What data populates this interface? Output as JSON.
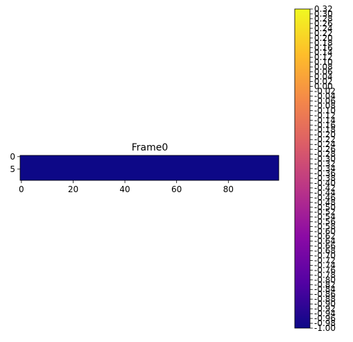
{
  "chart_data": {
    "type": "heatmap",
    "title": "Frame0",
    "colormap": "plasma",
    "grid": false,
    "shape": {
      "rows": 10,
      "cols": 100
    },
    "fill_value": -1.0,
    "x_ticks": [
      "0",
      "20",
      "40",
      "60",
      "80"
    ],
    "x_tick_values": [
      0,
      20,
      40,
      60,
      80
    ],
    "y_ticks": [
      "0",
      "5"
    ],
    "y_tick_values": [
      0,
      5
    ],
    "xlim": [
      -0.5,
      99.5
    ],
    "ylim": [
      9.5,
      -0.5
    ],
    "colorbar": {
      "range": [
        -1.0,
        0.32
      ],
      "tick_labels": [
        "0.32",
        "0.30",
        "0.28",
        "0.26",
        "0.24",
        "0.22",
        "0.20",
        "0.18",
        "0.16",
        "0.14",
        "0.12",
        "0.10",
        "0.08",
        "0.06",
        "0.04",
        "0.02",
        "0.00",
        "-0.02",
        "-0.04",
        "-0.06",
        "-0.08",
        "-0.10",
        "-0.12",
        "-0.14",
        "-0.16",
        "-0.18",
        "-0.20",
        "-0.22",
        "-0.24",
        "-0.26",
        "-0.28",
        "-0.30",
        "-0.32",
        "-0.34",
        "-0.36",
        "-0.38",
        "-0.40",
        "-0.42",
        "-0.44",
        "-0.46",
        "-0.48",
        "-0.50",
        "-0.52",
        "-0.54",
        "-0.56",
        "-0.58",
        "-0.60",
        "-0.62",
        "-0.64",
        "-0.66",
        "-0.68",
        "-0.70",
        "-0.72",
        "-0.74",
        "-0.76",
        "-0.78",
        "-0.80",
        "-0.82",
        "-0.84",
        "-0.86",
        "-0.88",
        "-0.90",
        "-0.92",
        "-0.94",
        "-0.96",
        "-0.98",
        "-1.00"
      ]
    }
  },
  "colors": {
    "plasma_stops": [
      "#0d0887",
      "#5302a3",
      "#8b0aa5",
      "#b83289",
      "#db5c68",
      "#f48849",
      "#febd2a",
      "#f0f921"
    ]
  }
}
